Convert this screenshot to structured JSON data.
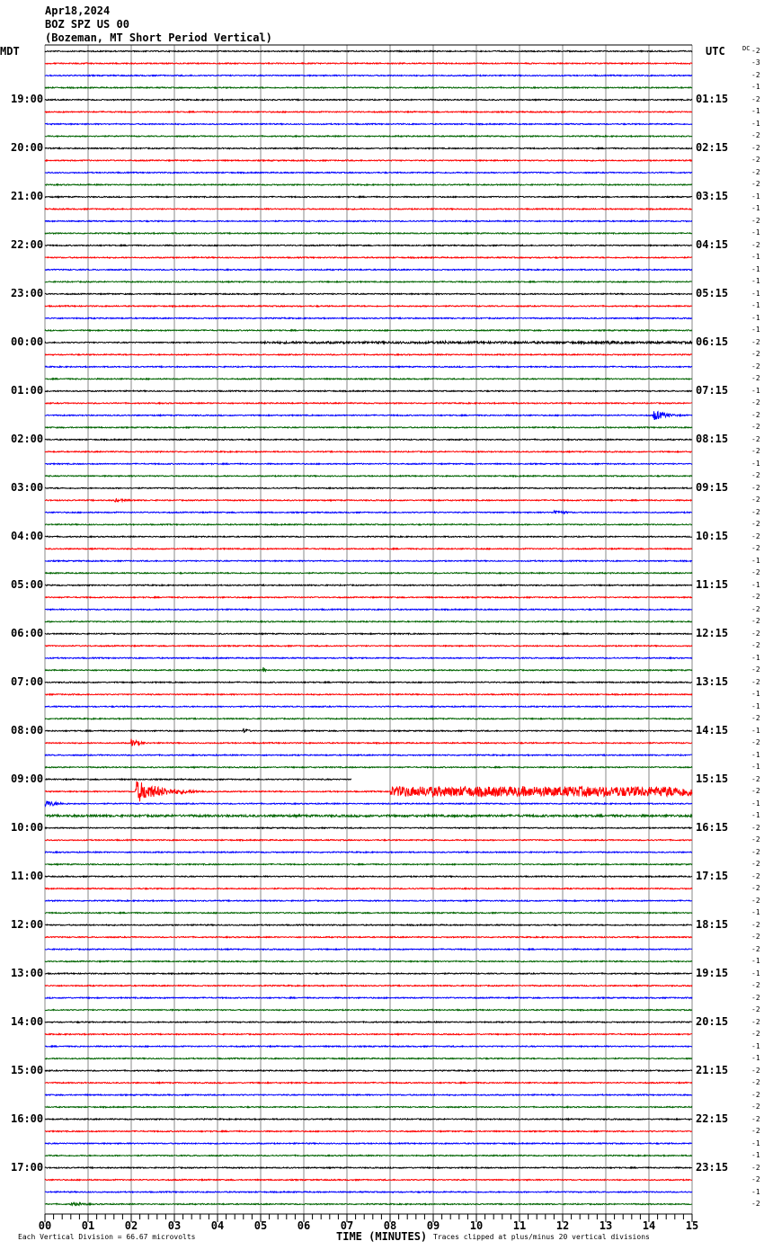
{
  "header": {
    "date": "Apr18,2024",
    "station": "BOZ SPZ US 00",
    "description": "(Bozeman, MT Short Period Vertical)"
  },
  "left_timezone": "MDT",
  "right_timezone": "UTC",
  "dc_label": "DC",
  "footer": {
    "scale": "Each Vertical Division =   66.67 microvolts",
    "xlabel": "TIME (MINUTES)",
    "clip_note": "Traces clipped at plus/minus 20 vertical divisions"
  },
  "chart_data": {
    "type": "line",
    "title": "Apr18,2024 BOZ SPZ US 00 (Bozeman, MT Short Period Vertical)",
    "xlabel": "TIME (MINUTES)",
    "xlim": [
      0,
      15
    ],
    "x_ticks": [
      "00",
      "01",
      "02",
      "03",
      "04",
      "05",
      "06",
      "07",
      "08",
      "09",
      "10",
      "11",
      "12",
      "13",
      "14",
      "15"
    ],
    "grid": true,
    "trace_colors": [
      "#000000",
      "#ff0000",
      "#0000ff",
      "#006400"
    ],
    "row_count": 96,
    "left_labels": [
      "19:00",
      "20:00",
      "21:00",
      "22:00",
      "23:00",
      "00:00",
      "01:00",
      "02:00",
      "03:00",
      "04:00",
      "05:00",
      "06:00",
      "07:00",
      "08:00",
      "09:00",
      "10:00",
      "11:00",
      "12:00",
      "13:00",
      "14:00",
      "15:00",
      "16:00",
      "17:00"
    ],
    "right_labels": [
      "01:15",
      "02:15",
      "03:15",
      "04:15",
      "05:15",
      "06:15",
      "07:15",
      "08:15",
      "09:15",
      "10:15",
      "11:15",
      "12:15",
      "13:15",
      "14:15",
      "15:15",
      "16:15",
      "17:15",
      "18:15",
      "19:15",
      "20:15",
      "21:15",
      "22:15",
      "23:15"
    ],
    "dc_offsets": [
      -2,
      -3,
      -2,
      -1,
      -2,
      -1,
      -1,
      -2,
      -2,
      -2,
      -2,
      -2,
      -1,
      -1,
      -2,
      -1,
      -2,
      -1,
      -1,
      -1,
      -1,
      -1,
      -1,
      -1,
      -2,
      -2,
      -2,
      -2,
      -1,
      -2,
      -2,
      -2,
      -2,
      -2,
      -1,
      -2,
      -2,
      -2,
      -2,
      -2,
      -2,
      -2,
      -1,
      -2,
      -1,
      -2,
      -2,
      -2,
      -2,
      -2,
      -1,
      -2,
      -2,
      -1,
      -1,
      -2,
      -1,
      -2,
      -1,
      -1,
      -2,
      -2,
      -1,
      -1,
      -2,
      -2,
      -2,
      -2,
      -2,
      -2,
      -2,
      -1,
      -2,
      -2,
      -2,
      -1,
      -1,
      -2,
      -2,
      -2,
      -2,
      -2,
      -1,
      -1,
      -2,
      -2,
      -2,
      -2,
      -2,
      -2,
      -1,
      -1,
      -2,
      -2,
      -1,
      -2
    ],
    "truncated_rows": [
      {
        "row": 60,
        "end_minute": 7.1
      }
    ],
    "events": [
      {
        "row": 1,
        "start": 8.2,
        "end": 9.0,
        "amplitude": 1.5
      },
      {
        "row": 24,
        "start": 5.0,
        "end": 15.0,
        "amplitude": 1.5
      },
      {
        "row": 24,
        "start": 9.2,
        "end": 10.2,
        "amplitude": 3
      },
      {
        "row": 24,
        "start": 13.0,
        "end": 15.0,
        "amplitude": 3
      },
      {
        "row": 30,
        "start": 14.1,
        "end": 15.0,
        "amplitude": 8
      },
      {
        "row": 37,
        "start": 1.6,
        "end": 3.0,
        "amplitude": 2.5
      },
      {
        "row": 38,
        "start": 11.8,
        "end": 12.8,
        "amplitude": 3.5
      },
      {
        "row": 51,
        "start": 5.05,
        "end": 5.2,
        "amplitude": 6
      },
      {
        "row": 56,
        "start": 4.6,
        "end": 5.0,
        "amplitude": 4
      },
      {
        "row": 57,
        "start": 2.0,
        "end": 2.6,
        "amplitude": 6
      },
      {
        "row": 61,
        "start": 2.1,
        "end": 4.0,
        "amplitude": 16
      },
      {
        "row": 61,
        "start": 8.0,
        "end": 15.0,
        "amplitude": 7
      },
      {
        "row": 62,
        "start": 0.0,
        "end": 1.0,
        "amplitude": 5
      },
      {
        "row": 63,
        "start": 0.0,
        "end": 15.0,
        "amplitude": 1.5
      },
      {
        "row": 95,
        "start": 0.6,
        "end": 1.8,
        "amplitude": 3
      }
    ]
  }
}
